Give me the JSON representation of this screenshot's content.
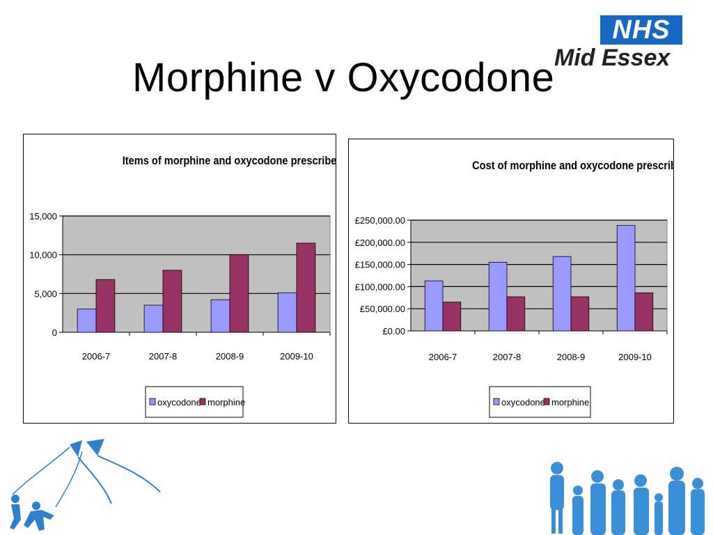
{
  "slide": {
    "title": "Morphine v Oxycodone",
    "logo_nhs": "NHS",
    "logo_org": "Mid Essex"
  },
  "colors": {
    "oxycodone": "#9999ff",
    "morphine": "#993366",
    "plot_bg": "#c0c0c0",
    "nhs_blue": "#1768c3",
    "decor_blue": "#3b8fd6"
  },
  "chart_data": [
    {
      "type": "bar",
      "title": "Items of morphine and oxycodone prescribed",
      "categories": [
        "2006-7",
        "2007-8",
        "2008-9",
        "2009-10"
      ],
      "series": [
        {
          "name": "oxycodone",
          "values": [
            3000,
            3500,
            4200,
            5100
          ]
        },
        {
          "name": "morphine",
          "values": [
            6800,
            8000,
            10000,
            11500
          ]
        }
      ],
      "ylim": [
        0,
        15000
      ],
      "yticks": [
        0,
        5000,
        10000,
        15000
      ],
      "ytick_labels": [
        "0",
        "5,000",
        "10,000",
        "15,000"
      ],
      "grid": true,
      "legend": "bottom"
    },
    {
      "type": "bar",
      "title": "Cost of morphine and oxycodone prescribing",
      "categories": [
        "2006-7",
        "2007-8",
        "2008-9",
        "2009-10"
      ],
      "series": [
        {
          "name": "oxycodone",
          "values": [
            113000,
            155000,
            168000,
            238000
          ]
        },
        {
          "name": "morphine",
          "values": [
            65000,
            77000,
            77000,
            86000
          ]
        }
      ],
      "ylim": [
        0,
        250000
      ],
      "yticks": [
        0,
        50000,
        100000,
        150000,
        200000,
        250000
      ],
      "ytick_labels": [
        "£0.00",
        "£50,000.00",
        "£100,000.00",
        "£150,000.00",
        "£200,000.00",
        "£250,000.00"
      ],
      "grid": true,
      "legend": "bottom"
    }
  ]
}
